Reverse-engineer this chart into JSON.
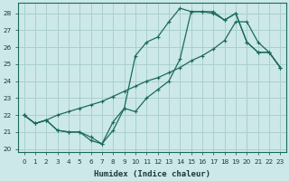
{
  "xlabel": "Humidex (Indice chaleur)",
  "background_color": "#cce8e8",
  "grid_color": "#aacfcf",
  "line_color": "#1a6b5a",
  "xlim": [
    -0.5,
    23.5
  ],
  "ylim": [
    19.8,
    28.6
  ],
  "xticks": [
    0,
    1,
    2,
    3,
    4,
    5,
    6,
    7,
    8,
    9,
    10,
    11,
    12,
    13,
    14,
    15,
    16,
    17,
    18,
    19,
    20,
    21,
    22,
    23
  ],
  "yticks": [
    20,
    21,
    22,
    23,
    24,
    25,
    26,
    27,
    28
  ],
  "series1_x": [
    0,
    1,
    2,
    3,
    4,
    5,
    6,
    7,
    8,
    9,
    10,
    11,
    12,
    13,
    14,
    15,
    16,
    17,
    18,
    19,
    20,
    21,
    22,
    23
  ],
  "series1_y": [
    22.0,
    21.5,
    21.7,
    21.1,
    21.0,
    21.0,
    20.7,
    20.3,
    21.1,
    22.4,
    22.2,
    23.0,
    23.5,
    24.0,
    25.3,
    28.1,
    28.1,
    28.0,
    27.6,
    28.0,
    26.3,
    25.7,
    25.7,
    24.8
  ],
  "series2_x": [
    0,
    1,
    2,
    3,
    4,
    5,
    6,
    7,
    8,
    9,
    10,
    11,
    12,
    13,
    14,
    15,
    16,
    17,
    18,
    19,
    20,
    21,
    22,
    23
  ],
  "series2_y": [
    22.0,
    21.5,
    21.7,
    22.0,
    22.2,
    22.4,
    22.6,
    22.8,
    23.1,
    23.4,
    23.7,
    24.0,
    24.2,
    24.5,
    24.8,
    25.2,
    25.5,
    25.9,
    26.4,
    27.5,
    27.5,
    26.3,
    25.7,
    24.8
  ],
  "series3_x": [
    0,
    1,
    2,
    3,
    4,
    5,
    6,
    7,
    8,
    9,
    10,
    11,
    12,
    13,
    14,
    15,
    16,
    17,
    18,
    19,
    20,
    21,
    22,
    23
  ],
  "series3_y": [
    22.0,
    21.5,
    21.7,
    21.1,
    21.0,
    21.0,
    20.5,
    20.3,
    21.6,
    22.4,
    25.5,
    26.3,
    26.6,
    27.5,
    28.3,
    28.1,
    28.1,
    28.1,
    27.6,
    28.0,
    26.3,
    25.7,
    25.7,
    24.8
  ]
}
